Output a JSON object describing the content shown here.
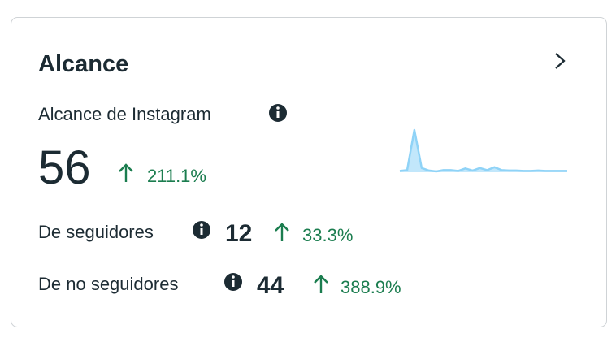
{
  "card": {
    "title": "Alcance",
    "metric_label": "Alcance de Instagram",
    "metric_value": "56",
    "metric_change": "211.1%",
    "sparkline": {
      "type": "line",
      "values": [
        0.3,
        0.5,
        10,
        1,
        0.4,
        0.2,
        0.5,
        0.5,
        0.3,
        0.9,
        0.4,
        1,
        0.5,
        1.2,
        0.5,
        0.4,
        0.4,
        0.3,
        0.3,
        0.4,
        0.3,
        0.3,
        0.3,
        0.3
      ],
      "color": "#8fd3f7"
    },
    "rows": [
      {
        "label": "De seguidores",
        "value": "12",
        "change": "33.3%"
      },
      {
        "label": "De no seguidores",
        "value": "44",
        "change": "388.9%"
      }
    ]
  }
}
